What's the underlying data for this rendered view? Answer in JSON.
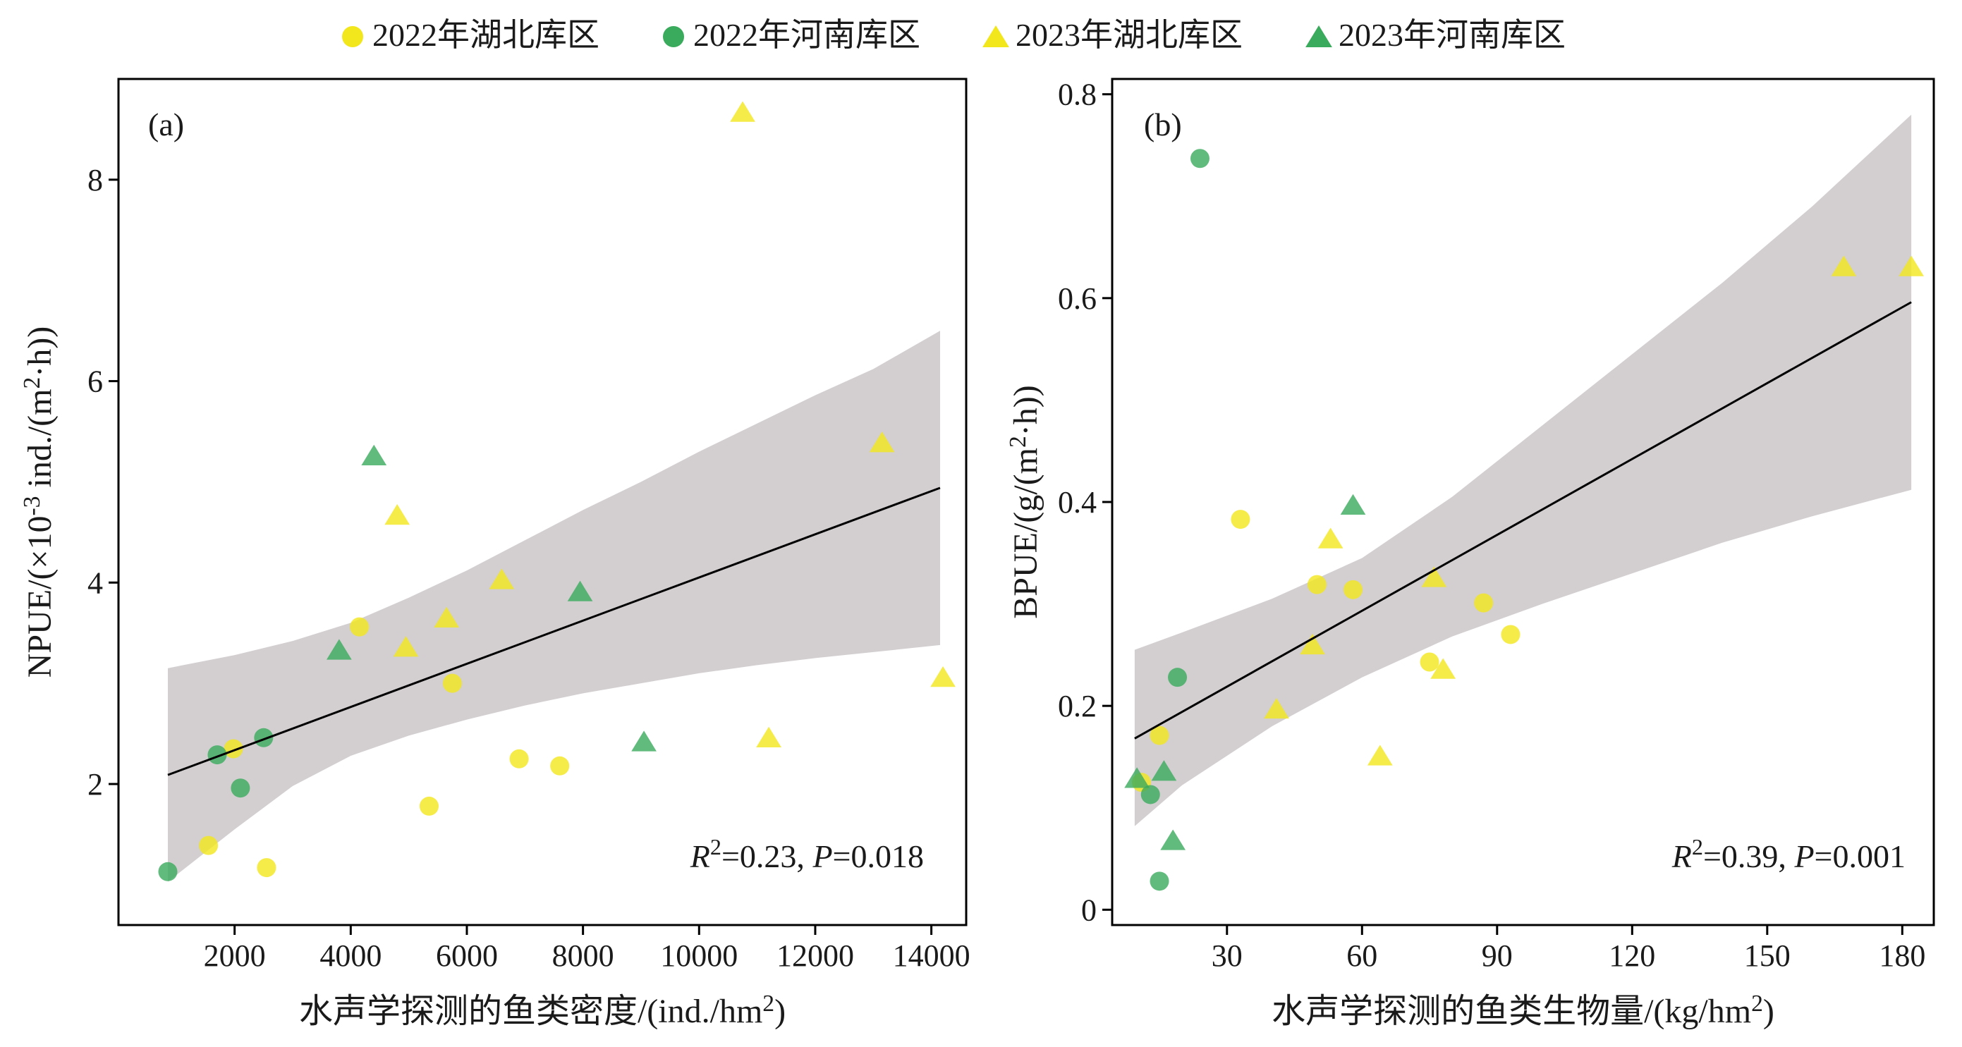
{
  "legend": [
    {
      "label": "2022年湖北库区",
      "marker": "circle",
      "color": "#f2e61c"
    },
    {
      "label": "2022年河南库区",
      "marker": "circle",
      "color": "#3aaa5c"
    },
    {
      "label": "2023年湖北库区",
      "marker": "triangle",
      "color": "#f2e61c"
    },
    {
      "label": "2023年河南库区",
      "marker": "triangle",
      "color": "#3aaa5c"
    }
  ],
  "colors": {
    "band": "#d3cfd1",
    "line": "#000000",
    "hubei": "#f2e61c",
    "henan": "#3aaa5c"
  },
  "chart_data": [
    {
      "type": "scatter",
      "panel_label": "(a)",
      "xlabel": "水声学探测的鱼类密度/(ind./hm2)",
      "ylabel": "NPUE/(×10-3 ind./(m2·h))",
      "xlim": [
        0,
        14600
      ],
      "ylim": [
        0.6,
        9.0
      ],
      "xticks": [
        "2000",
        "4000",
        "6000",
        "8000",
        "10000",
        "12000",
        "14000"
      ],
      "xtick_values": [
        2000,
        4000,
        6000,
        8000,
        10000,
        12000,
        14000
      ],
      "yticks": [
        "2",
        "4",
        "6",
        "8"
      ],
      "ytick_values": [
        2,
        4,
        6,
        8
      ],
      "annotation": {
        "r2": "0.23",
        "p": "0.018"
      },
      "fit": {
        "x": [
          850,
          14150
        ],
        "y": [
          2.09,
          4.94
        ]
      },
      "ci_band": {
        "x": [
          850,
          2000,
          3000,
          4000,
          5000,
          6000,
          7000,
          8000,
          9000,
          10000,
          11000,
          12000,
          13000,
          14150
        ],
        "upper": [
          3.15,
          3.28,
          3.42,
          3.6,
          3.85,
          4.12,
          4.42,
          4.72,
          5.0,
          5.3,
          5.58,
          5.86,
          6.12,
          6.5
        ],
        "lower": [
          1.03,
          1.55,
          1.98,
          2.28,
          2.48,
          2.64,
          2.78,
          2.9,
          3.0,
          3.1,
          3.18,
          3.25,
          3.31,
          3.38
        ]
      },
      "series": [
        {
          "name": "2022年湖北库区",
          "marker": "circle",
          "points": [
            [
              1550,
              1.39
            ],
            [
              1980,
              2.35
            ],
            [
              2550,
              1.17
            ],
            [
              4150,
              3.56
            ],
            [
              5350,
              1.78
            ],
            [
              5750,
              3.0
            ],
            [
              6900,
              2.25
            ],
            [
              7600,
              2.18
            ]
          ]
        },
        {
          "name": "2022年河南库区",
          "marker": "circle",
          "points": [
            [
              850,
              1.13
            ],
            [
              1700,
              2.29
            ],
            [
              2100,
              1.96
            ],
            [
              2500,
              2.46
            ]
          ]
        },
        {
          "name": "2023年湖北库区",
          "marker": "triangle",
          "points": [
            [
              4800,
              4.66
            ],
            [
              4950,
              3.35
            ],
            [
              5650,
              3.64
            ],
            [
              6600,
              4.02
            ],
            [
              10750,
              8.66
            ],
            [
              11200,
              2.45
            ],
            [
              13150,
              5.38
            ],
            [
              14200,
              3.05
            ]
          ]
        },
        {
          "name": "2023年河南库区",
          "marker": "triangle",
          "points": [
            [
              3800,
              3.32
            ],
            [
              4400,
              5.25
            ],
            [
              7950,
              3.9
            ],
            [
              9050,
              2.41
            ]
          ]
        }
      ]
    },
    {
      "type": "scatter",
      "panel_label": "(b)",
      "xlabel": "水声学探测的鱼类生物量/(kg/hm2)",
      "ylabel": "BPUE/(g/(m2·h))",
      "xlim": [
        4.5,
        187
      ],
      "ylim": [
        -0.015,
        0.815
      ],
      "xticks": [
        "30",
        "60",
        "90",
        "120",
        "150",
        "180"
      ],
      "xtick_values": [
        30,
        60,
        90,
        120,
        150,
        180
      ],
      "yticks": [
        "0",
        "0.2",
        "0.4",
        "0.6",
        "0.8"
      ],
      "ytick_values": [
        0,
        0.2,
        0.4,
        0.6,
        0.8
      ],
      "annotation": {
        "r2": "0.39",
        "p": "0.001"
      },
      "fit": {
        "x": [
          9.5,
          182
        ],
        "y": [
          0.168,
          0.596
        ]
      },
      "ci_band": {
        "x": [
          9.5,
          20,
          40,
          60,
          80,
          100,
          120,
          140,
          160,
          182
        ],
        "upper": [
          0.255,
          0.272,
          0.305,
          0.345,
          0.405,
          0.475,
          0.545,
          0.615,
          0.69,
          0.78
        ],
        "lower": [
          0.082,
          0.122,
          0.18,
          0.228,
          0.268,
          0.3,
          0.33,
          0.36,
          0.386,
          0.412
        ]
      },
      "series": [
        {
          "name": "2022年湖北库区",
          "marker": "circle",
          "points": [
            [
              11,
              0.125
            ],
            [
              15,
              0.171
            ],
            [
              33,
              0.383
            ],
            [
              50,
              0.319
            ],
            [
              58,
              0.314
            ],
            [
              75,
              0.243
            ],
            [
              87,
              0.301
            ],
            [
              93,
              0.27
            ]
          ]
        },
        {
          "name": "2022年河南库区",
          "marker": "circle",
          "points": [
            [
              13,
              0.113
            ],
            [
              15,
              0.028
            ],
            [
              19,
              0.228
            ],
            [
              24,
              0.737
            ]
          ]
        },
        {
          "name": "2023年湖北库区",
          "marker": "triangle",
          "points": [
            [
              41,
              0.196
            ],
            [
              49,
              0.259
            ],
            [
              53,
              0.363
            ],
            [
              64,
              0.15
            ],
            [
              76,
              0.325
            ],
            [
              78,
              0.235
            ],
            [
              167,
              0.63
            ],
            [
              182,
              0.63
            ]
          ]
        },
        {
          "name": "2023年河南库区",
          "marker": "triangle",
          "points": [
            [
              10,
              0.128
            ],
            [
              16,
              0.135
            ],
            [
              18,
              0.067
            ],
            [
              58,
              0.396
            ]
          ]
        }
      ]
    }
  ]
}
